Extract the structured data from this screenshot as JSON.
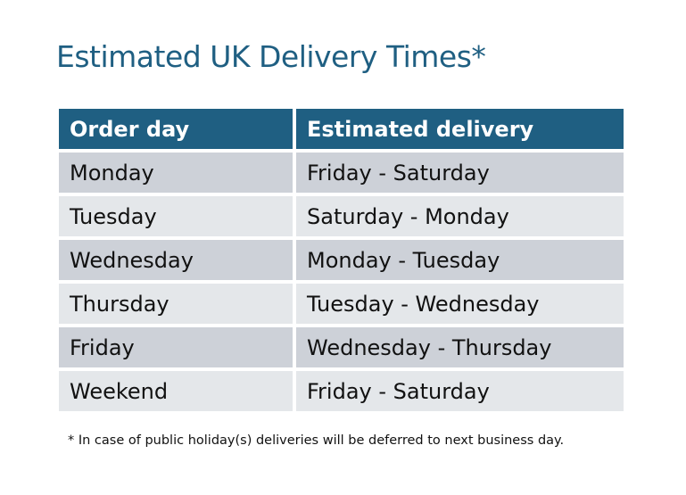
{
  "title": "Estimated UK Delivery Times*",
  "colors": {
    "header": "#1f5f82",
    "row_dark": "#cdd1d8",
    "row_light": "#e4e7ea"
  },
  "table": {
    "headers": [
      "Order day",
      "Estimated delivery"
    ],
    "rows": [
      [
        "Monday",
        "Friday - Saturday"
      ],
      [
        "Tuesday",
        "Saturday - Monday"
      ],
      [
        "Wednesday",
        "Monday - Tuesday"
      ],
      [
        "Thursday",
        "Tuesday - Wednesday"
      ],
      [
        "Friday",
        "Wednesday - Thursday"
      ],
      [
        "Weekend",
        "Friday - Saturday"
      ]
    ]
  },
  "footnote": "* In case of public holiday(s) deliveries will be deferred to next business day."
}
